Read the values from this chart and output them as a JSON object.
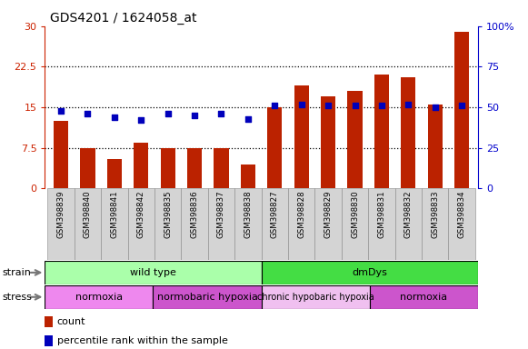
{
  "title": "GDS4201 / 1624058_at",
  "samples": [
    "GSM398839",
    "GSM398840",
    "GSM398841",
    "GSM398842",
    "GSM398835",
    "GSM398836",
    "GSM398837",
    "GSM398838",
    "GSM398827",
    "GSM398828",
    "GSM398829",
    "GSM398830",
    "GSM398831",
    "GSM398832",
    "GSM398833",
    "GSM398834"
  ],
  "counts": [
    12.5,
    7.5,
    5.5,
    8.5,
    7.5,
    7.5,
    7.5,
    4.5,
    15.0,
    19.0,
    17.0,
    18.0,
    21.0,
    20.5,
    15.5,
    29.0
  ],
  "percentiles": [
    48,
    46,
    44,
    42,
    46,
    45,
    46,
    43,
    51,
    52,
    51,
    51,
    51,
    52,
    50,
    51
  ],
  "bar_color": "#bb2200",
  "dot_color": "#0000bb",
  "left_ylim": [
    0,
    30
  ],
  "right_ylim": [
    0,
    100
  ],
  "left_yticks": [
    0,
    7.5,
    15,
    22.5,
    30
  ],
  "right_yticks": [
    0,
    25,
    50,
    75,
    100
  ],
  "left_yticklabels": [
    "0",
    "7.5",
    "15",
    "22.5",
    "30"
  ],
  "right_yticklabels": [
    "0",
    "25",
    "50",
    "75",
    "100%"
  ],
  "hlines": [
    7.5,
    15.0,
    22.5
  ],
  "strain_data": [
    {
      "text": "wild type",
      "start": 0,
      "end": 8,
      "color": "#aaffaa"
    },
    {
      "text": "dmDys",
      "start": 8,
      "end": 16,
      "color": "#44dd44"
    }
  ],
  "stress_data": [
    {
      "text": "normoxia",
      "start": 0,
      "end": 4,
      "color": "#ee88ee"
    },
    {
      "text": "normobaric hypoxia",
      "start": 4,
      "end": 8,
      "color": "#cc55cc"
    },
    {
      "text": "chronic hypobaric hypoxia",
      "start": 8,
      "end": 12,
      "color": "#f0c0f0"
    },
    {
      "text": "normoxia",
      "start": 12,
      "end": 16,
      "color": "#cc55cc"
    }
  ],
  "tick_bg_color": "#d4d4d4",
  "bg_color": "#ffffff",
  "left_axis_color": "#cc2200",
  "right_axis_color": "#0000cc"
}
